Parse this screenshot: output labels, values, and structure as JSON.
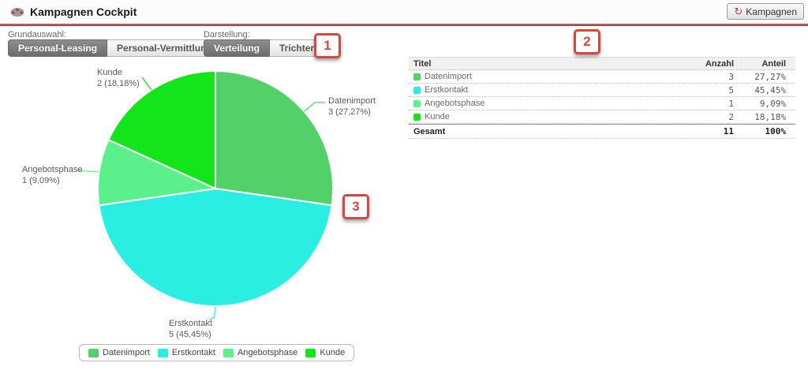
{
  "header": {
    "title": "Kampagnen Cockpit",
    "refresh_button": "Kampagnen"
  },
  "icons": {
    "refresh": "↻"
  },
  "toolbar": {
    "grundauswahl": {
      "label": "Grundauswahl:",
      "options": [
        {
          "label": "Personal-Leasing",
          "selected": true
        },
        {
          "label": "Personal-Vermittlung",
          "selected": false
        }
      ]
    },
    "darstellung": {
      "label": "Darstellung:",
      "options": [
        {
          "label": "Verteilung",
          "selected": true
        },
        {
          "label": "Trichter",
          "selected": false
        }
      ]
    }
  },
  "annotations": [
    "1",
    "2",
    "3"
  ],
  "chart_data": {
    "type": "pie",
    "title": "",
    "slices": [
      {
        "label": "Datenimport",
        "value": 3,
        "pct": 27.27,
        "value_label": "3 (27,27%)",
        "color": "#52d169"
      },
      {
        "label": "Erstkontakt",
        "value": 5,
        "pct": 45.45,
        "value_label": "5 (45,45%)",
        "color": "#2beee2"
      },
      {
        "label": "Angebotsphase",
        "value": 1,
        "pct": 9.09,
        "value_label": "1 (9,09%)",
        "color": "#5cf08c"
      },
      {
        "label": "Kunde",
        "value": 2,
        "pct": 18.18,
        "value_label": "2 (18,18%)",
        "color": "#14e41a"
      }
    ],
    "total": 11,
    "legend_position": "bottom"
  },
  "table": {
    "columns": [
      "Titel",
      "Anzahl",
      "Anteil"
    ],
    "rows": [
      {
        "title": "Datenimport",
        "anzahl": "3",
        "anteil": "27,27%",
        "color": "#52d169"
      },
      {
        "title": "Erstkontakt",
        "anzahl": "5",
        "anteil": "45,45%",
        "color": "#2beee2"
      },
      {
        "title": "Angebotsphase",
        "anzahl": "1",
        "anteil": "9,09%",
        "color": "#5cf08c"
      },
      {
        "title": "Kunde",
        "anzahl": "2",
        "anteil": "18,18%",
        "color": "#14e41a"
      }
    ],
    "footer": {
      "title": "Gesamt",
      "anzahl": "11",
      "anteil": "100%"
    }
  },
  "colors": {
    "annotation_red": "#d7473f",
    "header_line": "#9c3a38"
  }
}
